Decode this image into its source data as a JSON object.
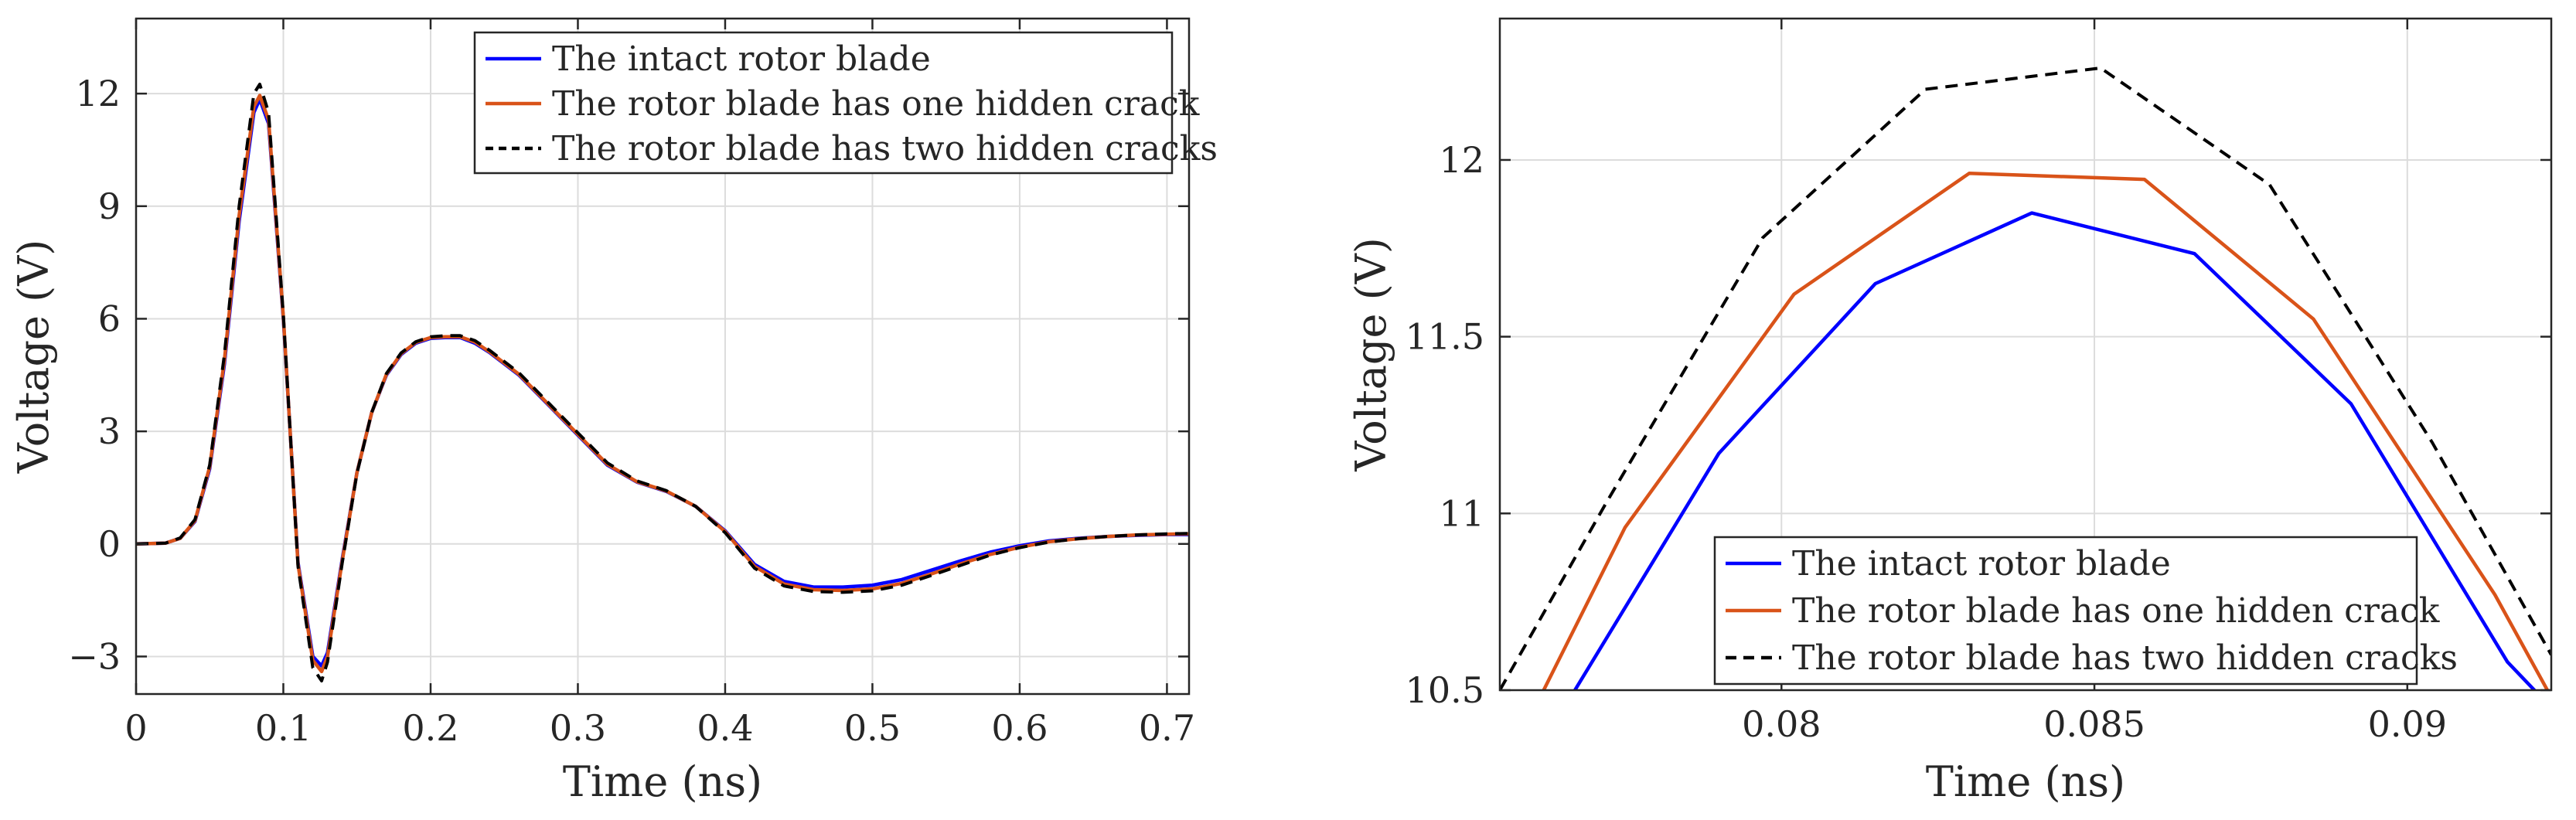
{
  "colors": {
    "intact": "#0000ff",
    "one_crack": "#d95319",
    "two_cracks": "#000000",
    "grid": "#dcdcdc",
    "axes": "#262626"
  },
  "chart_data": [
    {
      "type": "line",
      "name": "full-waveform",
      "title": "",
      "xlabel": "Time (ns)",
      "ylabel": "Voltage (V)",
      "xlim": [
        0,
        0.715
      ],
      "ylim": [
        -4,
        14
      ],
      "xticks": [
        0,
        0.1,
        0.2,
        0.3,
        0.4,
        0.5,
        0.6,
        0.7
      ],
      "xtick_labels": [
        "0",
        "0.1",
        "0.2",
        "0.3",
        "0.4",
        "0.5",
        "0.6",
        "0.7"
      ],
      "yticks": [
        -3,
        0,
        3,
        6,
        9,
        12
      ],
      "ytick_labels": [
        "−3",
        "0",
        "3",
        "6",
        "9",
        "12"
      ],
      "grid": true,
      "legend_position": "top-right",
      "series": [
        {
          "name": "The intact rotor blade",
          "color": "#0000ff",
          "style": "solid",
          "x": [
            0,
            0.02,
            0.03,
            0.04,
            0.05,
            0.06,
            0.07,
            0.08,
            0.084,
            0.09,
            0.1,
            0.11,
            0.12,
            0.126,
            0.13,
            0.14,
            0.15,
            0.16,
            0.17,
            0.18,
            0.19,
            0.2,
            0.21,
            0.22,
            0.23,
            0.24,
            0.26,
            0.28,
            0.3,
            0.32,
            0.34,
            0.36,
            0.38,
            0.4,
            0.42,
            0.44,
            0.46,
            0.48,
            0.5,
            0.52,
            0.54,
            0.56,
            0.58,
            0.6,
            0.62,
            0.64,
            0.66,
            0.68,
            0.7,
            0.715
          ],
          "y": [
            0,
            0.02,
            0.15,
            0.6,
            2.0,
            4.8,
            8.6,
            11.5,
            11.85,
            11.2,
            6.0,
            -0.5,
            -3.0,
            -3.25,
            -2.9,
            -0.4,
            1.9,
            3.5,
            4.5,
            5.05,
            5.35,
            5.48,
            5.5,
            5.5,
            5.35,
            5.1,
            4.5,
            3.7,
            2.9,
            2.1,
            1.65,
            1.4,
            1.0,
            0.35,
            -0.55,
            -1.0,
            -1.15,
            -1.15,
            -1.1,
            -0.95,
            -0.7,
            -0.45,
            -0.22,
            -0.05,
            0.08,
            0.15,
            0.2,
            0.23,
            0.25,
            0.25
          ]
        },
        {
          "name": "The rotor blade has one hidden crack",
          "color": "#d95319",
          "style": "solid",
          "x": [
            0,
            0.02,
            0.03,
            0.04,
            0.05,
            0.06,
            0.07,
            0.08,
            0.084,
            0.09,
            0.1,
            0.11,
            0.12,
            0.126,
            0.13,
            0.14,
            0.15,
            0.16,
            0.17,
            0.18,
            0.19,
            0.2,
            0.21,
            0.22,
            0.23,
            0.24,
            0.26,
            0.28,
            0.3,
            0.32,
            0.34,
            0.36,
            0.38,
            0.4,
            0.42,
            0.44,
            0.46,
            0.48,
            0.5,
            0.52,
            0.54,
            0.56,
            0.58,
            0.6,
            0.62,
            0.64,
            0.66,
            0.68,
            0.7,
            0.715
          ],
          "y": [
            0,
            0.02,
            0.15,
            0.62,
            2.05,
            4.9,
            8.75,
            11.65,
            11.95,
            11.3,
            6.05,
            -0.55,
            -3.1,
            -3.4,
            -3.0,
            -0.45,
            1.9,
            3.5,
            4.52,
            5.07,
            5.37,
            5.5,
            5.52,
            5.52,
            5.38,
            5.12,
            4.52,
            3.72,
            2.92,
            2.12,
            1.66,
            1.41,
            1.0,
            0.33,
            -0.6,
            -1.07,
            -1.22,
            -1.24,
            -1.2,
            -1.05,
            -0.8,
            -0.53,
            -0.28,
            -0.09,
            0.06,
            0.14,
            0.2,
            0.24,
            0.26,
            0.27
          ]
        },
        {
          "name": "The rotor blade has two hidden cracks",
          "color": "#000000",
          "style": "dashed",
          "x": [
            0,
            0.02,
            0.03,
            0.04,
            0.05,
            0.06,
            0.07,
            0.08,
            0.084,
            0.09,
            0.1,
            0.11,
            0.12,
            0.126,
            0.13,
            0.14,
            0.15,
            0.16,
            0.17,
            0.18,
            0.19,
            0.2,
            0.21,
            0.22,
            0.23,
            0.24,
            0.26,
            0.28,
            0.3,
            0.32,
            0.34,
            0.36,
            0.38,
            0.4,
            0.42,
            0.44,
            0.46,
            0.48,
            0.5,
            0.52,
            0.54,
            0.56,
            0.58,
            0.6,
            0.62,
            0.64,
            0.66,
            0.68,
            0.7,
            0.715
          ],
          "y": [
            0,
            0.02,
            0.16,
            0.65,
            2.1,
            5.05,
            9.0,
            12.0,
            12.25,
            11.5,
            6.1,
            -0.6,
            -3.3,
            -3.65,
            -3.15,
            -0.5,
            1.88,
            3.5,
            4.54,
            5.09,
            5.39,
            5.52,
            5.55,
            5.55,
            5.42,
            5.16,
            4.56,
            3.76,
            2.96,
            2.16,
            1.68,
            1.42,
            1.0,
            0.3,
            -0.65,
            -1.12,
            -1.27,
            -1.29,
            -1.25,
            -1.1,
            -0.84,
            -0.57,
            -0.3,
            -0.1,
            0.05,
            0.14,
            0.2,
            0.24,
            0.27,
            0.28
          ]
        }
      ]
    },
    {
      "type": "line",
      "name": "peak-zoom",
      "title": "",
      "xlabel": "Time (ns)",
      "ylabel": "Voltage (V)",
      "xlim": [
        0.0755,
        0.0923
      ],
      "ylim": [
        10.5,
        12.4
      ],
      "xticks": [
        0.08,
        0.085,
        0.09
      ],
      "xtick_labels": [
        "0.08",
        "0.085",
        "0.09"
      ],
      "yticks": [
        10.5,
        11,
        11.5,
        12
      ],
      "ytick_labels": [
        "10.5",
        "11",
        "11.5",
        "12"
      ],
      "grid": true,
      "legend_position": "bottom-center",
      "series": [
        {
          "name": "The intact rotor blade",
          "color": "#0000ff",
          "style": "solid",
          "x": [
            0.0767,
            0.079,
            0.0815,
            0.084,
            0.0866,
            0.0891,
            0.0916,
            0.0923
          ],
          "y": [
            10.5,
            11.17,
            11.65,
            11.85,
            11.735,
            11.31,
            10.58,
            10.45
          ]
        },
        {
          "name": "The rotor blade has one hidden crack",
          "color": "#d95319",
          "style": "solid",
          "x": [
            0.0762,
            0.0775,
            0.0802,
            0.083,
            0.0858,
            0.0885,
            0.0914,
            0.0923
          ],
          "y": [
            10.5,
            10.96,
            11.62,
            11.962,
            11.945,
            11.55,
            10.77,
            10.48
          ]
        },
        {
          "name": "The rotor blade has two hidden cracks",
          "color": "#000000",
          "style": "dashed",
          "x": [
            0.0755,
            0.0772,
            0.0797,
            0.0823,
            0.0851,
            0.0878,
            0.0904,
            0.0923
          ],
          "y": [
            10.5,
            11.03,
            11.78,
            12.2,
            12.26,
            11.93,
            11.2,
            10.6
          ]
        }
      ]
    }
  ]
}
